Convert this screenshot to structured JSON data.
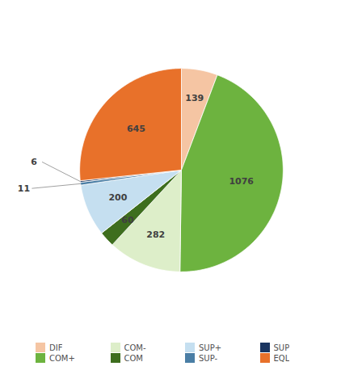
{
  "chart_data": {
    "type": "pie",
    "categories": [
      "DIF",
      "COM+",
      "COM-",
      "COM",
      "SUP+",
      "SUP-",
      "SUP",
      "EQL"
    ],
    "values": [
      139,
      1076,
      282,
      60,
      200,
      11,
      6,
      645
    ],
    "colors": [
      "#f5c5a3",
      "#6db33f",
      "#ddeec9",
      "#3e6e1e",
      "#c5dff0",
      "#4a7ea5",
      "#1a3560",
      "#e8712a"
    ],
    "data_labels": true,
    "legend": "bottom"
  }
}
